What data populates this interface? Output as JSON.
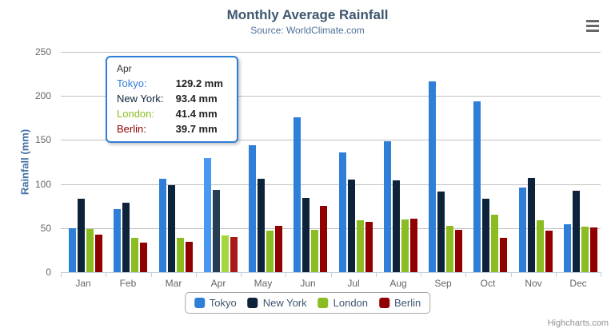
{
  "header": {
    "title": "Monthly Average Rainfall",
    "subtitle": "Source: WorldClimate.com"
  },
  "chart_data": {
    "type": "bar",
    "title": "Monthly Average Rainfall",
    "subtitle": "Source: WorldClimate.com",
    "xlabel": "",
    "ylabel": "Rainfall (mm)",
    "ylim": [
      0,
      250
    ],
    "yticks": [
      0,
      50,
      100,
      150,
      200,
      250
    ],
    "grid": true,
    "legend_position": "bottom",
    "categories": [
      "Jan",
      "Feb",
      "Mar",
      "Apr",
      "May",
      "Jun",
      "Jul",
      "Aug",
      "Sep",
      "Oct",
      "Nov",
      "Dec"
    ],
    "highlighted_category": "Apr",
    "value_suffix": "mm",
    "series": [
      {
        "name": "Tokyo",
        "color": "#2f7ed8",
        "hover_color": "#4897f1",
        "values": [
          49.9,
          71.5,
          106.4,
          129.2,
          144.0,
          176.0,
          135.6,
          148.5,
          216.4,
          194.1,
          95.6,
          54.4
        ]
      },
      {
        "name": "New York",
        "color": "#0d233a",
        "hover_color": "#273d54",
        "values": [
          83.6,
          78.8,
          98.5,
          93.4,
          106.0,
          84.5,
          105.0,
          104.3,
          91.2,
          83.5,
          106.6,
          92.3
        ]
      },
      {
        "name": "London",
        "color": "#8bbc21",
        "hover_color": "#a5d63b",
        "values": [
          48.9,
          38.8,
          39.3,
          41.4,
          47.0,
          48.3,
          59.0,
          59.6,
          52.4,
          65.2,
          59.3,
          51.2
        ]
      },
      {
        "name": "Berlin",
        "color": "#910000",
        "hover_color": "#ab1a1a",
        "values": [
          42.4,
          33.2,
          34.5,
          39.7,
          52.6,
          75.5,
          57.4,
          60.4,
          47.6,
          39.1,
          46.8,
          51.1
        ]
      }
    ]
  },
  "tooltip": {
    "header": "Apr",
    "rows": [
      {
        "label": "Tokyo:",
        "value": "129.2 mm"
      },
      {
        "label": "New York:",
        "value": "93.4 mm"
      },
      {
        "label": "London:",
        "value": "41.4 mm"
      },
      {
        "label": "Berlin:",
        "value": "39.7 mm"
      }
    ]
  },
  "legend": {
    "items": [
      "Tokyo",
      "New York",
      "London",
      "Berlin"
    ]
  },
  "credits": {
    "label": "Highcharts.com"
  },
  "colors": {
    "grid": "#c0c0c0",
    "axis_line": "#c0d0e0",
    "axis_label": "#666666",
    "title": "#3e576f",
    "subtitle": "#4d7399",
    "y_axis_title": "#4572a7",
    "legend_text": "#3e576f",
    "legend_border": "#a7a7a7",
    "tooltip_border": "#2f7ed8",
    "credits": "#909090",
    "menu_icon": "#666666"
  }
}
